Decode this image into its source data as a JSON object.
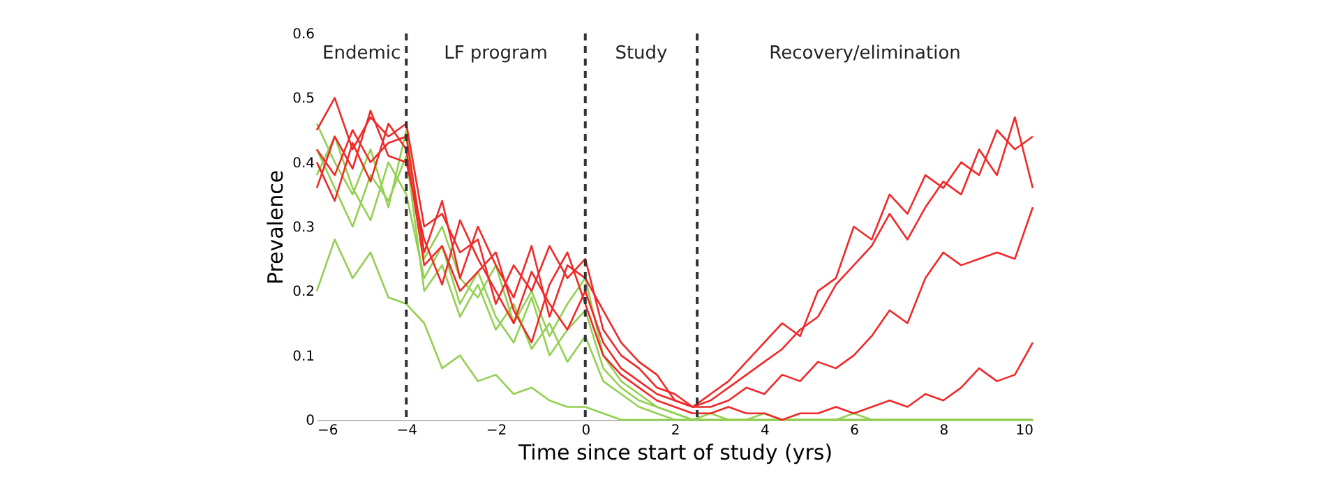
{
  "chart_data": {
    "type": "line",
    "xlabel": "Time since start of study (yrs)",
    "ylabel": "Prevalence",
    "x": [
      -6,
      -5.6,
      -5.2,
      -4.8,
      -4.4,
      -4.0,
      -3.6,
      -3.2,
      -2.8,
      -2.4,
      -2.0,
      -1.6,
      -1.2,
      -0.8,
      -0.4,
      0,
      0.4,
      0.8,
      1.2,
      1.6,
      2.0,
      2.4,
      2.8,
      3.2,
      3.6,
      4.0,
      4.4,
      4.8,
      5.2,
      5.6,
      6.0,
      6.4,
      6.8,
      7.2,
      7.6,
      8.0,
      8.4,
      8.8,
      9.2,
      9.6,
      10
    ],
    "series": [
      {
        "color": "#92d050",
        "values": [
          0.46,
          0.4,
          0.35,
          0.42,
          0.33,
          0.45,
          0.25,
          0.3,
          0.22,
          0.19,
          0.24,
          0.15,
          0.2,
          0.13,
          0.18,
          0.22,
          0.1,
          0.06,
          0.04,
          0.02,
          0.01,
          0.0,
          0.01,
          0,
          0,
          0.01,
          0,
          0,
          0,
          0,
          0.01,
          0,
          0,
          0,
          0,
          0,
          0,
          0,
          0,
          0,
          0
        ]
      },
      {
        "color": "#92d050",
        "values": [
          0.38,
          0.44,
          0.36,
          0.31,
          0.4,
          0.35,
          0.22,
          0.27,
          0.18,
          0.23,
          0.16,
          0.12,
          0.19,
          0.1,
          0.14,
          0.17,
          0.08,
          0.05,
          0.03,
          0.02,
          0.01,
          0,
          0,
          0,
          0,
          0,
          0,
          0,
          0,
          0,
          0,
          0,
          0,
          0,
          0,
          0,
          0,
          0,
          0,
          0,
          0
        ]
      },
      {
        "color": "#92d050",
        "values": [
          0.42,
          0.36,
          0.3,
          0.38,
          0.34,
          0.41,
          0.2,
          0.24,
          0.16,
          0.21,
          0.14,
          0.18,
          0.11,
          0.15,
          0.09,
          0.13,
          0.06,
          0.04,
          0.02,
          0.01,
          0,
          0,
          0,
          0,
          0,
          0,
          0,
          0,
          0,
          0,
          0,
          0,
          0,
          0,
          0,
          0,
          0,
          0,
          0,
          0,
          0
        ]
      },
      {
        "color": "#92d050",
        "values": [
          0.2,
          0.28,
          0.22,
          0.26,
          0.19,
          0.18,
          0.15,
          0.08,
          0.1,
          0.06,
          0.07,
          0.04,
          0.05,
          0.03,
          0.02,
          0.02,
          0.01,
          0,
          0,
          0,
          0,
          0,
          0,
          0,
          0,
          0,
          0,
          0,
          0,
          0,
          0,
          0,
          0,
          0,
          0,
          0,
          0,
          0,
          0,
          0,
          0
        ]
      },
      {
        "color": "#f02828",
        "values": [
          0.45,
          0.5,
          0.42,
          0.47,
          0.44,
          0.46,
          0.3,
          0.32,
          0.26,
          0.28,
          0.18,
          0.24,
          0.2,
          0.27,
          0.22,
          0.25,
          0.14,
          0.1,
          0.08,
          0.05,
          0.04,
          0.02,
          0.04,
          0.06,
          0.09,
          0.12,
          0.15,
          0.13,
          0.2,
          0.22,
          0.3,
          0.28,
          0.35,
          0.32,
          0.38,
          0.36,
          0.4,
          0.38,
          0.45,
          0.42,
          0.44
        ]
      },
      {
        "color": "#f02828",
        "values": [
          0.42,
          0.38,
          0.45,
          0.4,
          0.43,
          0.44,
          0.26,
          0.34,
          0.22,
          0.3,
          0.24,
          0.19,
          0.27,
          0.16,
          0.24,
          0.22,
          0.17,
          0.12,
          0.09,
          0.07,
          0.03,
          0.02,
          0.03,
          0.05,
          0.07,
          0.09,
          0.11,
          0.14,
          0.16,
          0.21,
          0.24,
          0.27,
          0.32,
          0.28,
          0.33,
          0.37,
          0.35,
          0.42,
          0.38,
          0.47,
          0.36
        ]
      },
      {
        "color": "#f02828",
        "values": [
          0.36,
          0.44,
          0.39,
          0.48,
          0.41,
          0.4,
          0.28,
          0.21,
          0.31,
          0.25,
          0.2,
          0.15,
          0.23,
          0.18,
          0.14,
          0.2,
          0.12,
          0.08,
          0.06,
          0.04,
          0.03,
          0.02,
          0.02,
          0.03,
          0.05,
          0.04,
          0.07,
          0.06,
          0.09,
          0.08,
          0.1,
          0.13,
          0.17,
          0.15,
          0.22,
          0.26,
          0.24,
          0.25,
          0.26,
          0.25,
          0.33
        ]
      },
      {
        "color": "#f02828",
        "values": [
          0.4,
          0.34,
          0.43,
          0.37,
          0.46,
          0.42,
          0.24,
          0.27,
          0.2,
          0.23,
          0.26,
          0.17,
          0.12,
          0.21,
          0.26,
          0.18,
          0.1,
          0.07,
          0.05,
          0.03,
          0.02,
          0.01,
          0.01,
          0.02,
          0.01,
          0.01,
          0.0,
          0.01,
          0.01,
          0.02,
          0.01,
          0.02,
          0.03,
          0.02,
          0.04,
          0.03,
          0.05,
          0.08,
          0.06,
          0.07,
          0.12
        ]
      }
    ],
    "xlim": [
      -6,
      10
    ],
    "ylim": [
      0,
      0.6
    ],
    "xticks": [
      -6,
      -4,
      -2,
      0,
      2,
      4,
      6,
      8,
      10
    ],
    "yticks": [
      {
        "value": 0,
        "label": "0"
      },
      0.1,
      0.2,
      0.3,
      0.4,
      0.5,
      0.6
    ],
    "ref_lines": [
      {
        "axis": "x",
        "value": -4,
        "color": "#333333",
        "line_style": "dashed"
      },
      {
        "axis": "x",
        "value": 0,
        "color": "#333333",
        "line_style": "dashed"
      },
      {
        "axis": "x",
        "value": 2.5,
        "color": "#333333",
        "line_style": "dashed"
      }
    ],
    "annotations": [
      "Endemic",
      "LF program",
      "Study",
      "Recovery/elimination"
    ]
  }
}
